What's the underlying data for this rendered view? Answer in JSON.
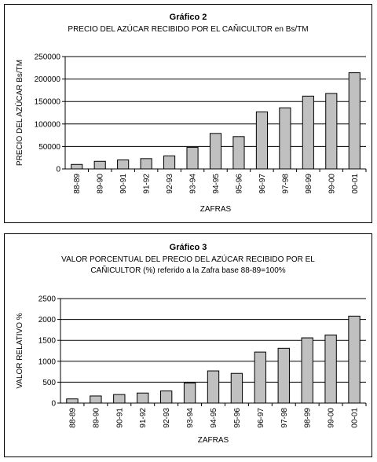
{
  "chart_data": [
    {
      "type": "bar",
      "title": "Gráfico 2",
      "subtitle": "PRECIO DEL AZÚCAR RECIBIDO POR EL CAÑICULTOR en Bs/TM",
      "xlabel": "ZAFRAS",
      "ylabel": "PRECIO DEL AZÚCAR  Bs/TM",
      "categories": [
        "88-89",
        "89-90",
        "90-91",
        "91-92",
        "92-93",
        "93-94",
        "94-95",
        "95-96",
        "96-97",
        "97-98",
        "98-99",
        "99-00",
        "00-01"
      ],
      "values": [
        10000,
        17000,
        20000,
        23000,
        29000,
        48000,
        79000,
        72000,
        127000,
        136000,
        162000,
        168000,
        214000
      ],
      "yticks": [
        "0",
        "50000",
        "100000",
        "150000",
        "200000",
        "250000"
      ],
      "ylim": [
        0,
        250000
      ],
      "grid": true,
      "bar_color": "#c0c0c0"
    },
    {
      "type": "bar",
      "title": "Gráfico 3",
      "subtitle_lines": [
        "VALOR PORCENTUAL DEL PRECIO DEL AZÚCAR RECIBIDO POR EL",
        "CAÑICULTOR (%)  referido a la Zafra base 88-89=100%"
      ],
      "xlabel": "ZAFRAS",
      "ylabel": "VALOR RELATIVO %",
      "categories": [
        "88-89",
        "89-90",
        "90-91",
        "91-92",
        "92-93",
        "93-94",
        "94-95",
        "95-96",
        "96-97",
        "97-98",
        "98-99",
        "99-00",
        "00-01"
      ],
      "values": [
        100,
        170,
        205,
        240,
        290,
        480,
        770,
        710,
        1220,
        1310,
        1560,
        1630,
        2080
      ],
      "yticks": [
        "0",
        "500",
        "1000",
        "1500",
        "2000",
        "2500"
      ],
      "ylim": [
        0,
        2500
      ],
      "grid": true,
      "bar_color": "#c0c0c0"
    }
  ]
}
